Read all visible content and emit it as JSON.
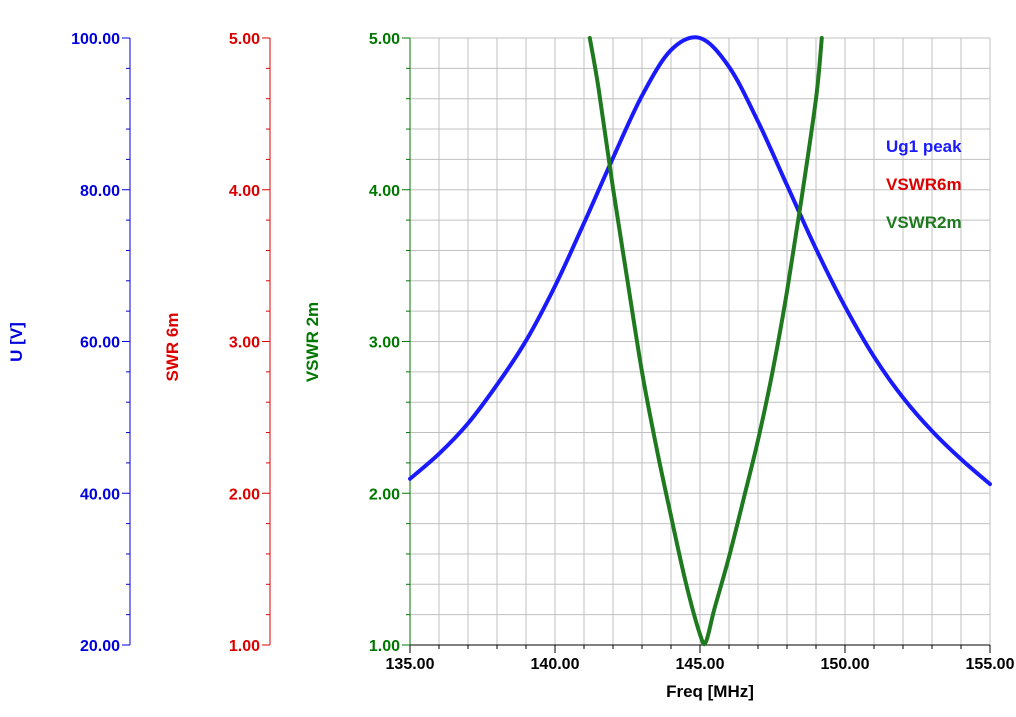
{
  "chart_data": {
    "type": "line",
    "xlabel": "Freq [MHz]",
    "xlim": [
      135,
      155
    ],
    "x_ticks": [
      "135.00",
      "140.00",
      "145.00",
      "150.00",
      "155.00"
    ],
    "grid": true,
    "legend_position": "right",
    "axes": [
      {
        "label": "U [V]",
        "color": "#0000dd",
        "lim": [
          20,
          100
        ],
        "ticks": [
          "20.00",
          "40.00",
          "60.00",
          "80.00",
          "100.00"
        ]
      },
      {
        "label": "SWR 6m",
        "color": "#dd0000",
        "lim": [
          1,
          5
        ],
        "ticks": [
          "1.00",
          "2.00",
          "3.00",
          "4.00",
          "5.00"
        ]
      },
      {
        "label": "VSWR 2m",
        "color": "#007700",
        "lim": [
          1,
          5
        ],
        "ticks": [
          "1.00",
          "2.00",
          "3.00",
          "4.00",
          "5.00"
        ]
      }
    ],
    "series": [
      {
        "name": "Ug1 peak",
        "color": "#1a1aff",
        "axis": 0,
        "x": [
          135,
          136,
          137,
          138,
          139,
          140,
          141,
          142,
          143,
          144,
          145,
          146,
          147,
          148,
          149,
          150,
          151,
          152,
          153,
          154,
          155
        ],
        "y": [
          41.9,
          45.2,
          49.2,
          54.3,
          60.1,
          67.3,
          75.6,
          84.2,
          92.4,
          98.4,
          100.0,
          96.2,
          89.0,
          80.6,
          72.2,
          64.6,
          58.0,
          52.6,
          48.2,
          44.5,
          41.2
        ]
      },
      {
        "name": "VSWR6m",
        "color": "#dd0000",
        "axis": 1,
        "x": [],
        "y": []
      },
      {
        "name": "VSWR2m",
        "color": "#1f7a1f",
        "axis": 2,
        "x": [
          141.2,
          141.5,
          142.0,
          142.5,
          143.0,
          143.5,
          144.0,
          144.5,
          145.0,
          145.2,
          145.5,
          146.0,
          146.5,
          147.0,
          147.5,
          148.0,
          148.5,
          149.0,
          149.2
        ],
        "y": [
          5.0,
          4.67,
          4.01,
          3.4,
          2.8,
          2.3,
          1.85,
          1.42,
          1.07,
          1.02,
          1.24,
          1.58,
          1.96,
          2.35,
          2.8,
          3.33,
          3.94,
          4.6,
          5.0
        ]
      }
    ]
  }
}
